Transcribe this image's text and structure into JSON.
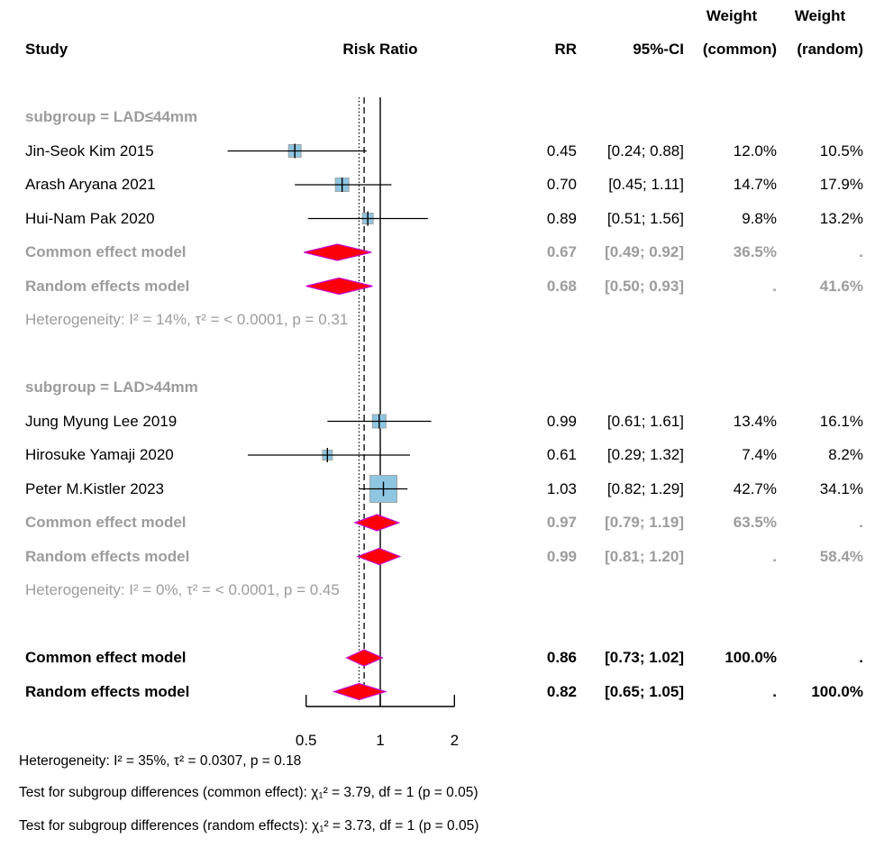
{
  "header": {
    "study": "Study",
    "risk_ratio": "Risk Ratio",
    "rr": "RR",
    "ci": "95%-CI",
    "weight_common_top": "Weight",
    "weight_common_bottom": "(common)",
    "weight_random_top": "Weight",
    "weight_random_bottom": "(random)"
  },
  "colors": {
    "square_fill": "#8ec6e2",
    "square_border": "#a3a3a3",
    "diamond_fill": "#fb0007",
    "diamond_border": "#c800c8",
    "gray_text": "#9c9c9c",
    "line_black": "#000000"
  },
  "footnotes": [
    "Heterogeneity: I² = 35%, τ² = 0.0307, p = 0.18",
    "Test for subgroup differences (common effect): χ₁² = 3.79, df = 1 (p = 0.05)",
    "Test for subgroup differences (random effects): χ₁² = 3.73, df = 1 (p = 0.05)"
  ],
  "chart_data": {
    "type": "forest",
    "scale": "log",
    "axis": {
      "ticks": [
        0.5,
        1,
        2
      ],
      "tick_labels": [
        "0.5",
        "1",
        "2"
      ]
    },
    "ref_lines": {
      "solid": 1.0,
      "dashed": 0.86,
      "dotted": 0.82
    },
    "rows": [
      {
        "type": "subgroup",
        "label": "subgroup = LAD≤44mm"
      },
      {
        "type": "study",
        "label": "Jin-Seok Kim 2015",
        "rr": 0.45,
        "lb": 0.24,
        "ub": 0.88,
        "rr_text": "0.45",
        "ci_text": "[0.24; 0.88]",
        "w_common": "12.0%",
        "w_random": "10.5%",
        "size": 14
      },
      {
        "type": "study",
        "label": "Arash Aryana 2021",
        "rr": 0.7,
        "lb": 0.45,
        "ub": 1.11,
        "rr_text": "0.70",
        "ci_text": "[0.45; 1.11]",
        "w_common": "14.7%",
        "w_random": "17.9%",
        "size": 15
      },
      {
        "type": "study",
        "label": "Hui-Nam Pak 2020",
        "rr": 0.89,
        "lb": 0.51,
        "ub": 1.56,
        "rr_text": "0.89",
        "ci_text": "[0.51; 1.56]",
        "w_common": "9.8%",
        "w_random": "13.2%",
        "size": 12
      },
      {
        "type": "pooled",
        "style": "gray",
        "label": "Common effect model",
        "rr": 0.67,
        "lb": 0.49,
        "ub": 0.92,
        "rr_text": "0.67",
        "ci_text": "[0.49; 0.92]",
        "w_common": "36.5%",
        "w_random": "."
      },
      {
        "type": "pooled",
        "style": "gray",
        "label": "Random effects model",
        "rr": 0.68,
        "lb": 0.5,
        "ub": 0.93,
        "rr_text": "0.68",
        "ci_text": "[0.50; 0.93]",
        "w_common": ".",
        "w_random": "41.6%"
      },
      {
        "type": "note",
        "label": "Heterogeneity: I² = 14%, τ² = < 0.0001, p = 0.31"
      },
      {
        "type": "spacer"
      },
      {
        "type": "subgroup",
        "label": "subgroup = LAD>44mm"
      },
      {
        "type": "study",
        "label": "Jung Myung Lee 2019",
        "rr": 0.99,
        "lb": 0.61,
        "ub": 1.61,
        "rr_text": "0.99",
        "ci_text": "[0.61; 1.61]",
        "w_common": "13.4%",
        "w_random": "16.1%",
        "size": 15
      },
      {
        "type": "study",
        "label": "Hirosuke Yamaji 2020",
        "rr": 0.61,
        "lb": 0.29,
        "ub": 1.32,
        "rr_text": "0.61",
        "ci_text": "[0.29; 1.32]",
        "w_common": "7.4%",
        "w_random": "8.2%",
        "size": 11
      },
      {
        "type": "study",
        "label": "Peter M.Kistler 2023",
        "rr": 1.03,
        "lb": 0.82,
        "ub": 1.29,
        "rr_text": "1.03",
        "ci_text": "[0.82; 1.29]",
        "w_common": "42.7%",
        "w_random": "34.1%",
        "size": 30
      },
      {
        "type": "pooled",
        "style": "gray",
        "label": "Common effect model",
        "rr": 0.97,
        "lb": 0.79,
        "ub": 1.19,
        "rr_text": "0.97",
        "ci_text": "[0.79; 1.19]",
        "w_common": "63.5%",
        "w_random": "."
      },
      {
        "type": "pooled",
        "style": "gray",
        "label": "Random effects model",
        "rr": 0.99,
        "lb": 0.81,
        "ub": 1.2,
        "rr_text": "0.99",
        "ci_text": "[0.81; 1.20]",
        "w_common": ".",
        "w_random": "58.4%"
      },
      {
        "type": "note",
        "label": "Heterogeneity: I² = 0%, τ² = < 0.0001, p = 0.45"
      },
      {
        "type": "spacer"
      },
      {
        "type": "pooled",
        "style": "black",
        "label": "Common effect model",
        "rr": 0.86,
        "lb": 0.73,
        "ub": 1.02,
        "rr_text": "0.86",
        "ci_text": "[0.73; 1.02]",
        "w_common": "100.0%",
        "w_random": "."
      },
      {
        "type": "pooled",
        "style": "black",
        "label": "Random effects model",
        "rr": 0.82,
        "lb": 0.65,
        "ub": 1.05,
        "rr_text": "0.82",
        "ci_text": "[0.65; 1.05]",
        "w_common": ".",
        "w_random": "100.0%"
      }
    ]
  }
}
